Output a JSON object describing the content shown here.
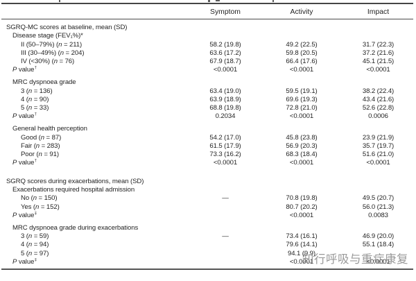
{
  "watermark": "知行呼吸与重症康复",
  "colors": {
    "text": "#242424",
    "rule": "#454545",
    "watermark_gray": "#8b8b8b"
  },
  "table": {
    "columns": [
      "Symptom",
      "Activity",
      "Impact"
    ],
    "rows": [
      {
        "type": "group",
        "label": "SGRQ-MC scores at baseline, mean (SD)",
        "symptom": "",
        "activity": "",
        "impact": ""
      },
      {
        "type": "sub",
        "label": "Disease stage (FEV₁%)*",
        "symptom": "",
        "activity": "",
        "impact": ""
      },
      {
        "type": "data",
        "label": "II (50–79%) (n = 211)",
        "symptom": "58.2 (19.8)",
        "activity": "49.2 (22.5)",
        "impact": "31.7 (22.3)"
      },
      {
        "type": "data",
        "label": "III (30–49%) (n = 204)",
        "symptom": "63.6 (17.2)",
        "activity": "59.8 (20.5)",
        "impact": "37.2 (21.6)"
      },
      {
        "type": "data",
        "label": "IV (<30%) (n = 76)",
        "symptom": "67.9 (18.7)",
        "activity": "66.4 (17.6)",
        "impact": "45.1 (21.5)"
      },
      {
        "type": "pvalue",
        "label": "P value†",
        "symptom": "<0.0001",
        "activity": "<0.0001",
        "impact": "<0.0001"
      },
      {
        "type": "sub",
        "label": "MRC dyspnoea grade",
        "symptom": "",
        "activity": "",
        "impact": ""
      },
      {
        "type": "data",
        "label": "3 (n = 136)",
        "symptom": "63.4 (19.0)",
        "activity": "59.5 (19.1)",
        "impact": "38.2 (22.4)"
      },
      {
        "type": "data",
        "label": "4 (n = 90)",
        "symptom": "63.9 (18.9)",
        "activity": "69.6 (19.3)",
        "impact": "43.4 (21.6)"
      },
      {
        "type": "data",
        "label": "5 (n = 33)",
        "symptom": "68.8 (19.8)",
        "activity": "72.8 (21.0)",
        "impact": "52.6 (22.8)"
      },
      {
        "type": "pvalue",
        "label": "P value†",
        "symptom": "0.2034",
        "activity": "<0.0001",
        "impact": "0.0006"
      },
      {
        "type": "sub",
        "label": "General health perception",
        "symptom": "",
        "activity": "",
        "impact": ""
      },
      {
        "type": "data",
        "label": "Good (n = 87)",
        "symptom": "54.2 (17.0)",
        "activity": "45.8 (23.8)",
        "impact": "23.9 (21.9)"
      },
      {
        "type": "data",
        "label": "Fair (n = 283)",
        "symptom": "61.5 (17.9)",
        "activity": "56.9 (20.3)",
        "impact": "35.7 (19.7)"
      },
      {
        "type": "data",
        "label": "Poor (n = 91)",
        "symptom": "73.3 (16.2)",
        "activity": "68.3 (18.4)",
        "impact": "51.6 (21.0)"
      },
      {
        "type": "pvalue",
        "label": "P value†",
        "symptom": "<0.0001",
        "activity": "<0.0001",
        "impact": "<0.0001"
      },
      {
        "type": "group",
        "label": "SGRQ scores during exacerbations, mean (SD)",
        "symptom": "",
        "activity": "",
        "impact": ""
      },
      {
        "type": "sub",
        "label": "Exacerbations required hospital admission",
        "symptom": "",
        "activity": "",
        "impact": ""
      },
      {
        "type": "data",
        "label": "No (n = 150)",
        "symptom": "—",
        "activity": "70.8 (19.8)",
        "impact": "49.5 (20.7)"
      },
      {
        "type": "data",
        "label": "Yes (n = 152)",
        "symptom": "",
        "activity": "80.7 (20.2)",
        "impact": "56.0 (21.3)"
      },
      {
        "type": "pvalue",
        "label": "P value‡",
        "symptom": "",
        "activity": "<0.0001",
        "impact": "0.0083"
      },
      {
        "type": "sub",
        "label": "MRC dyspnoea grade during exacerbations",
        "symptom": "",
        "activity": "",
        "impact": ""
      },
      {
        "type": "data",
        "label": "3 (n = 59)",
        "symptom": "—",
        "activity": "73.4 (16.1)",
        "impact": "46.9 (20.0)"
      },
      {
        "type": "data",
        "label": "4 (n = 94)",
        "symptom": "",
        "activity": "79.6 (14.1)",
        "impact": "55.1 (18.4)"
      },
      {
        "type": "data",
        "label": "5 (n = 97)",
        "symptom": "",
        "activity": "94.1 (9.9)",
        "impact": ""
      },
      {
        "type": "pvalue",
        "label": "P value‡",
        "symptom": "",
        "activity": "<0.0001",
        "impact": "<0.0001"
      }
    ]
  }
}
